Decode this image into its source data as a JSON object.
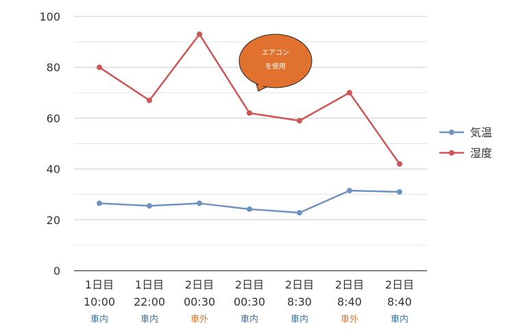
{
  "chart_data": {
    "type": "line",
    "y_ticks": [
      "0",
      "20",
      "40",
      "60",
      "80",
      "100"
    ],
    "ylim": [
      0,
      100
    ],
    "grid": true,
    "legend_position": "right",
    "categories": [
      {
        "day": "1日目",
        "time": "10:00",
        "location": "車内"
      },
      {
        "day": "1日目",
        "time": "22:00",
        "location": "車内"
      },
      {
        "day": "2日目",
        "time": "00:30",
        "location": "車外"
      },
      {
        "day": "2日目",
        "time": "00:30",
        "location": "車内"
      },
      {
        "day": "2日目",
        "time": "8:30",
        "location": "車内"
      },
      {
        "day": "2日目",
        "time": "8:40",
        "location": "車外"
      },
      {
        "day": "2日目",
        "time": "8:40",
        "location": "車内"
      }
    ],
    "series": [
      {
        "name": "気温",
        "color": "#6f93bf",
        "values": [
          26.5,
          25.5,
          26.5,
          24.2,
          22.8,
          31.5,
          31.0
        ]
      },
      {
        "name": "湿度",
        "color": "#cf5454",
        "values": [
          80,
          67,
          93,
          62,
          59,
          70,
          42
        ]
      }
    ],
    "annotation": {
      "lines": [
        "エアコン",
        "を使用"
      ],
      "fill": "#e0712f"
    },
    "location_colors": {
      "車内": "#3f77a8",
      "車外": "#e07b39"
    }
  }
}
